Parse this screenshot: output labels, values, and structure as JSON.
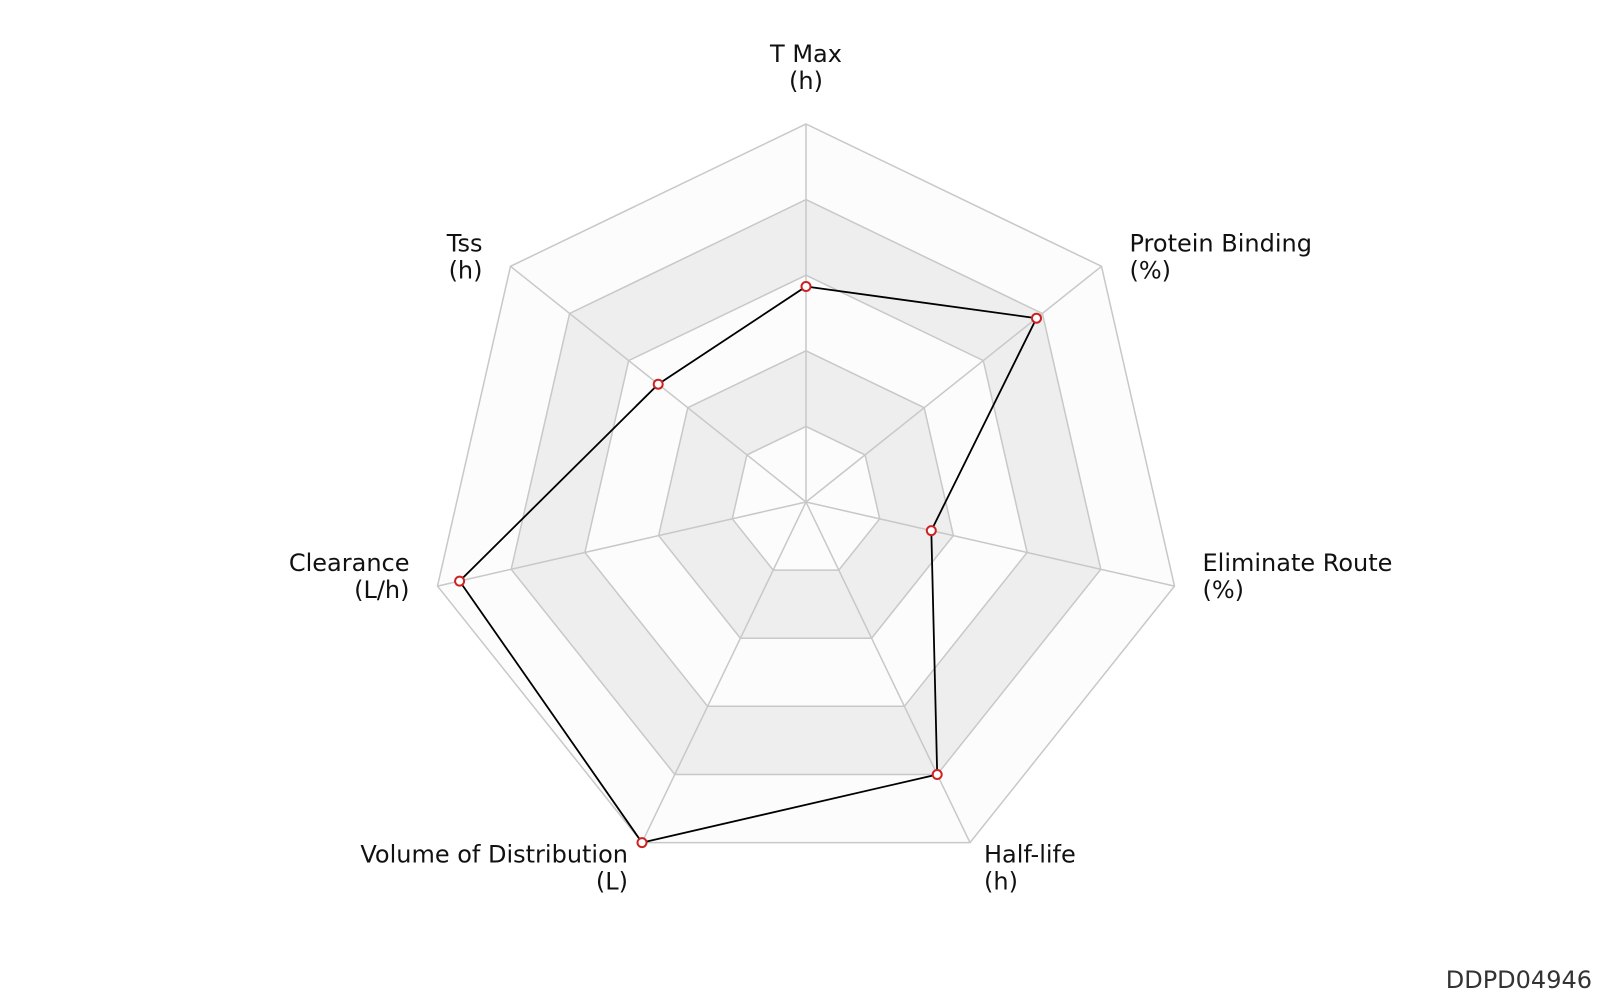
{
  "chart_data": {
    "type": "radar",
    "axes": [
      {
        "name": "T Max",
        "unit": "(h)"
      },
      {
        "name": "Protein Binding",
        "unit": "(%)"
      },
      {
        "name": "Eliminate Route",
        "unit": "(%)"
      },
      {
        "name": "Half-life",
        "unit": "(h)"
      },
      {
        "name": "Volume of Distribution",
        "unit": "(L)"
      },
      {
        "name": "Clearance",
        "unit": "(L/h)"
      },
      {
        "name": "Tss",
        "unit": "(h)"
      }
    ],
    "values": [
      0.57,
      0.78,
      0.34,
      0.8,
      1.0,
      0.94,
      0.5
    ],
    "range": [
      0,
      1
    ],
    "rings": 5,
    "title": "",
    "grid": true,
    "legend": false
  },
  "footer": {
    "id": "DDPD04946"
  },
  "colors": {
    "band_light": "#fcfcfc",
    "band_dark": "#eeeeee",
    "grid_line": "#c8c8c8",
    "series_line": "#000000",
    "marker_stroke": "#cc2222",
    "marker_fill": "#ffffff",
    "text": "#111111"
  }
}
